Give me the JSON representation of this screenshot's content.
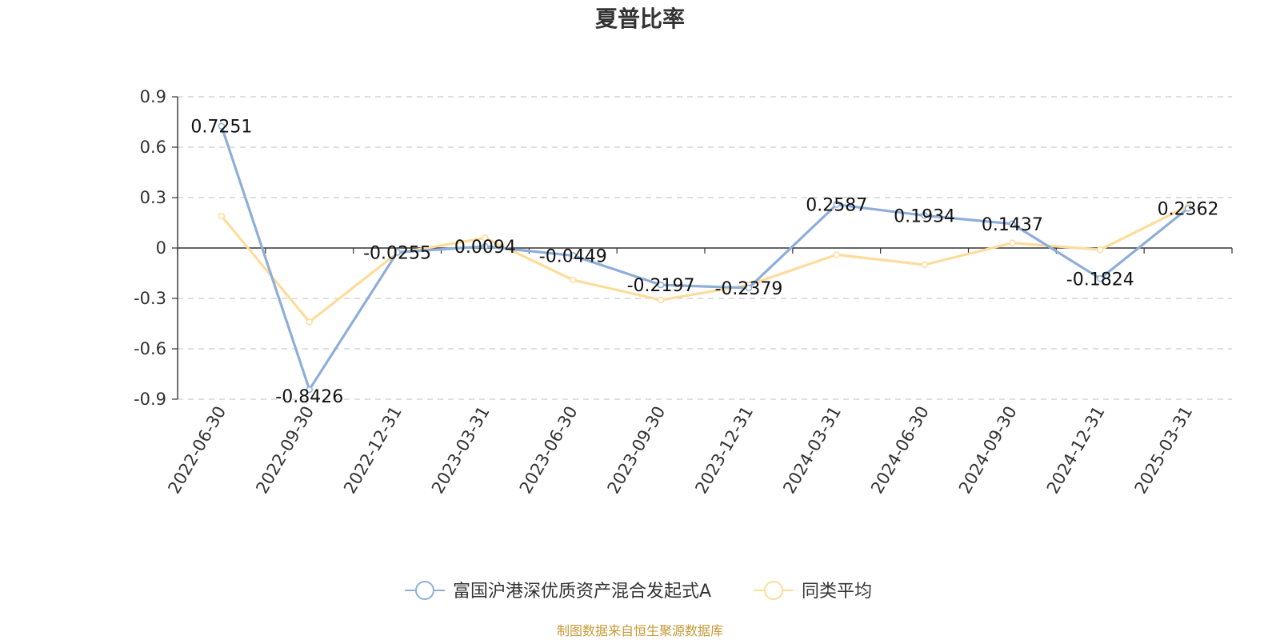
{
  "chart_data": {
    "type": "line",
    "title": "夏普比率",
    "categories": [
      "2022-06-30",
      "2022-09-30",
      "2022-12-31",
      "2023-03-31",
      "2023-06-30",
      "2023-09-30",
      "2023-12-31",
      "2024-03-31",
      "2024-06-30",
      "2024-09-30",
      "2024-12-31",
      "2025-03-31"
    ],
    "yticks": [
      "0.9",
      "0.6",
      "0.3",
      "0",
      "-0.3",
      "-0.6",
      "-0.9"
    ],
    "ylim": [
      -0.9,
      0.9
    ],
    "grid": true,
    "legend_position": "bottom",
    "series": [
      {
        "name": "富国沪港深优质资产混合发起式A",
        "color": "#8eaed9",
        "values": [
          0.7251,
          -0.8426,
          -0.0255,
          0.0094,
          -0.0449,
          -0.2197,
          -0.2379,
          0.2587,
          0.1934,
          0.1437,
          -0.1824,
          0.2362
        ],
        "labels": [
          "0.7251",
          "-0.8426",
          "-0.0255",
          "0.0094",
          "-0.0449",
          "-0.2197",
          "-0.2379",
          "0.2587",
          "0.1934",
          "0.1437",
          "-0.1824",
          "0.2362"
        ]
      },
      {
        "name": "同类平均",
        "color": "#fddc9b",
        "values": [
          0.19,
          -0.44,
          -0.03,
          0.06,
          -0.19,
          -0.31,
          -0.22,
          -0.04,
          -0.1,
          0.03,
          -0.01,
          0.25
        ]
      }
    ],
    "source": "制图数据来自恒生聚源数据库"
  }
}
